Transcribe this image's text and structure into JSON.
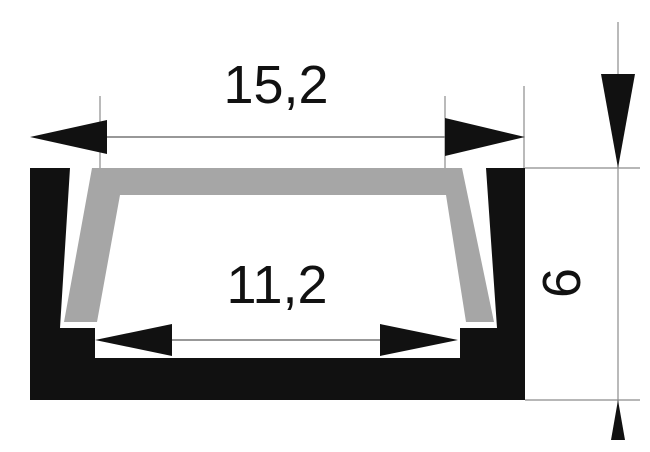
{
  "drawing": {
    "outer_width_label": "15,2",
    "inner_width_label": "11,2",
    "height_label": "6",
    "colors": {
      "profile": "#111111",
      "diffuser": "#a6a6a6",
      "background": "#ffffff",
      "dimension_line": "#777777",
      "arrow": "#111111"
    }
  }
}
